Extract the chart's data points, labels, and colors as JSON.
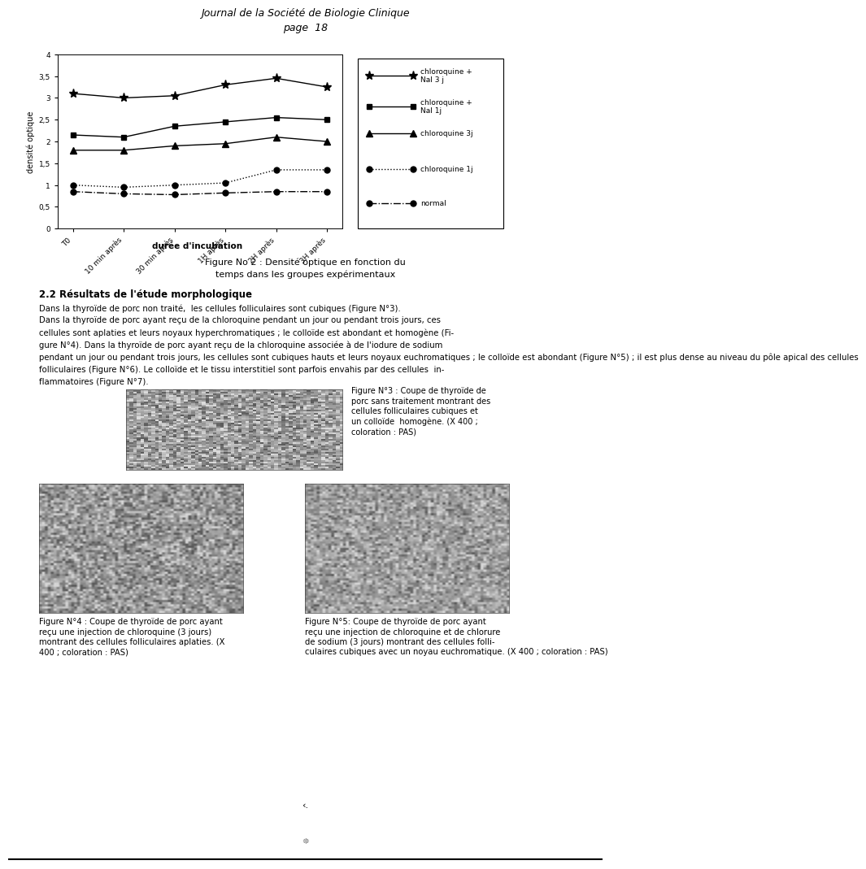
{
  "header_line1": "Journal de la Société de Biologie Clinique",
  "header_line2": "page  18",
  "graph": {
    "x_labels": [
      "T0",
      "10 min après",
      "30 min après",
      "1H après",
      "2H après",
      "3H après"
    ],
    "x_values": [
      0,
      1,
      2,
      3,
      4,
      5
    ],
    "series": {
      "chloroquine_NaI_3j": {
        "label": "chloroquine +\nNaI 3 j",
        "values": [
          3.1,
          3.0,
          3.05,
          3.3,
          3.45,
          3.25
        ],
        "linestyle": "-",
        "marker": "*",
        "markersize": 8
      },
      "chloroquine_NaI_1j": {
        "label": "chloroquine +\nNaI 1j",
        "values": [
          2.15,
          2.1,
          2.35,
          2.45,
          2.55,
          2.5
        ],
        "linestyle": "-",
        "marker": "s",
        "markersize": 5
      },
      "chloroquine_3j": {
        "label": "chloroquine 3j",
        "values": [
          1.8,
          1.8,
          1.9,
          1.95,
          2.1,
          2.0
        ],
        "linestyle": "-",
        "marker": "^",
        "markersize": 6
      },
      "chloroquine_1j": {
        "label": "chloroquine 1j",
        "values": [
          1.0,
          0.95,
          1.0,
          1.05,
          1.35,
          1.35
        ],
        "linestyle": "--",
        "marker": "o",
        "markersize": 5
      },
      "normal": {
        "label": "normal",
        "values": [
          0.85,
          0.8,
          0.78,
          0.82,
          0.85,
          0.85
        ],
        "linestyle": "-.",
        "marker": "o",
        "markersize": 5
      }
    },
    "ylabel": "densité optique",
    "xlabel": "durée d'incubation",
    "ylim": [
      0,
      4
    ],
    "yticks": [
      0,
      0.5,
      1,
      1.5,
      2,
      2.5,
      3,
      3.5,
      4
    ],
    "ytick_labels": [
      "0",
      "0,5",
      "1",
      "1,5",
      "2",
      "2,5",
      "3",
      "3,5",
      "4"
    ],
    "fig_caption_line1": "Figure No 2 : Densité optique en fonction du",
    "fig_caption_line2": "temps dans les groupes expérimentaux"
  },
  "section_title": "2.2 Résultats de l'étude morphologique",
  "body_lines": [
    "Dans la thyroïde de porc non traité,  les cellules folliculaires sont cubiques (Figure N°3).",
    "Dans la thyroïde de porc ayant reçu de la chloroquine pendant un jour ou pendant trois jours, ces",
    "cellules sont aplaties et leurs noyaux hyperchromatiques ; le colloïde est abondant et homogène (Fi-",
    "gure N°4). Dans la thyroïde de porc ayant reçu de la chloroquine associée à de l'iodure de sodium",
    "pendant un jour ou pendant trois jours, les cellules sont cubiques hauts et leurs noyaux euchromatiques ; le colloïde est abondant (Figure N°5) ; il est plus dense au niveau du pôle apical des cellules",
    "folliculaires (Figure N°6). Le colloïde et le tissu interstitiel sont parfois envahis par des cellules  in-",
    "flammatoires (Figure N°7)."
  ],
  "fig3_caption": "Figure N°3 : Coupe de thyroïde de\nporc sans traitement montrant des\ncellules folliculaires cubiques et\nun colloïde  homogène. (X 400 ;\ncoloration : PAS)",
  "fig4_caption": "Figure N°4 : Coupe de thyroïde de porc ayant\nreçu une injection de chloroquine (3 jours)\nmontrant des cellules folliculaires aplaties. (X\n400 ; coloration : PAS)",
  "fig5_caption": "Figure N°5: Coupe de thyroïde de porc ayant\nreçu une injection de chloroquine et de chlorure\nde sodium (3 jours) montrant des cellules folli-\nculaires cubiques avec un noyau euchromatique. (X 400 ; coloration : PAS)",
  "bg_color": "#ffffff",
  "text_color": "#000000"
}
